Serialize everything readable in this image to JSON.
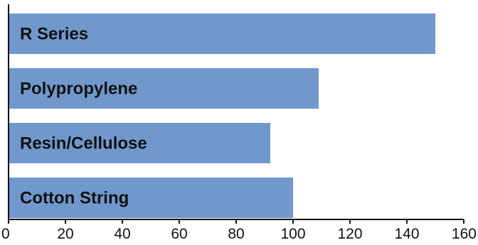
{
  "chart_data": {
    "type": "bar",
    "orientation": "horizontal",
    "categories": [
      "R Series",
      "Polypropylene",
      "Resin/Cellulose",
      "Cotton String"
    ],
    "values": [
      150,
      109,
      92,
      100
    ],
    "xlim": [
      0,
      160
    ],
    "xticks": [
      "0",
      "20",
      "40",
      "60",
      "80",
      "100",
      "120",
      "140",
      "160"
    ],
    "bar_color": "#7098cc",
    "axis_color": "#111111",
    "grid": false,
    "legend": "none"
  }
}
